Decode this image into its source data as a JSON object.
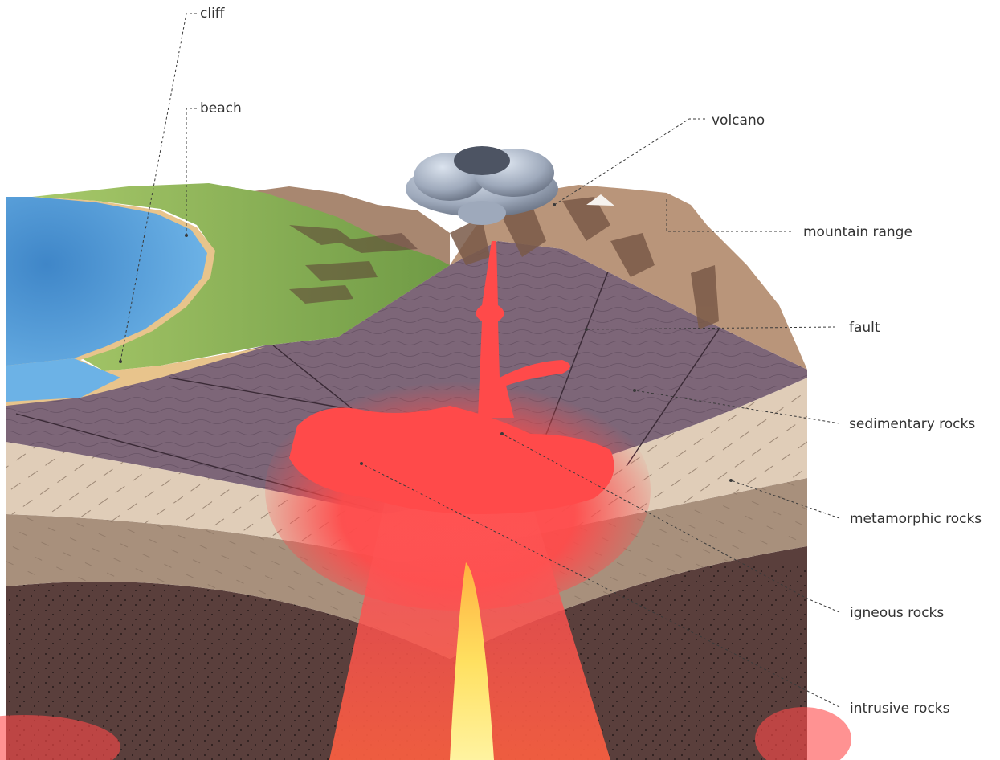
{
  "labels": {
    "cliff": "cliff",
    "beach": "beach",
    "volcano": "volcano",
    "mountain_range": "mountain range",
    "fault": "fault",
    "sedimentary_rocks": "sedimentary rocks",
    "metamorphic_rocks": "metamorphic rocks",
    "igneous_rocks": "igneous rocks",
    "intrusive_rocks": "intrusive rocks"
  },
  "colors": {
    "sea": "#5aa3dc",
    "grass": "#8fb85a",
    "sand": "#e8c48c",
    "sedimentary": "#7d6678",
    "metamorphic": "#e0cdb8",
    "deep_rock": "#a8907c",
    "intrusive": "#5a3f3c",
    "magma": "#ff4a4a",
    "magma_core": "#ffe060",
    "mountain": "#b9957a",
    "ash": "#a9b4c4",
    "label_text": "#333333"
  }
}
